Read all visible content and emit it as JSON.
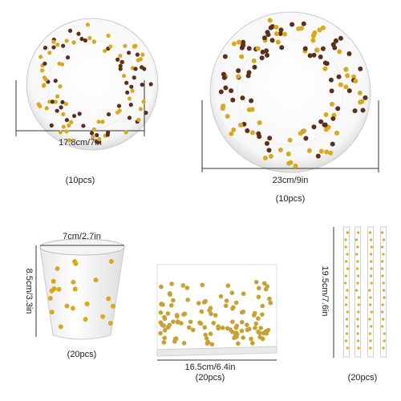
{
  "items": [
    {
      "size": "17.8cm/7in",
      "count": "(10pcs)"
    },
    {
      "size": "23cm/9in",
      "count": "(10pcs)"
    },
    {
      "size": "7cm/2.7in",
      "height": "8.5cm/3.3in",
      "count": "(20pcs)"
    },
    {
      "size": "16.5cm/6.4in",
      "count": "(20pcs)"
    },
    {
      "height": "19.5cm/7.6in",
      "count": "(20pcs)"
    }
  ]
}
